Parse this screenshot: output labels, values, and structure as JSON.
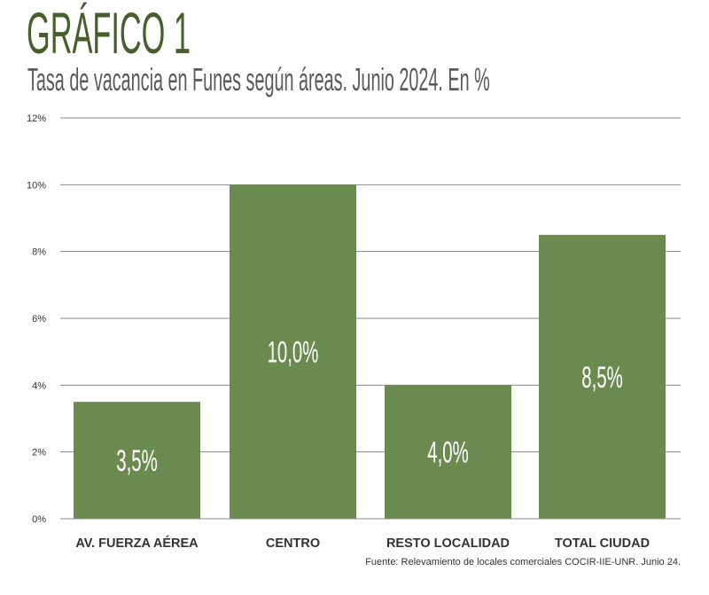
{
  "title": "GRÁFICO 1",
  "subtitle": "Tasa de vacancia en Funes según áreas. Junio 2024. En %",
  "source": "Fuente: Relevamiento de locales comerciales COCIR-IIE-UNR. Junio 24.",
  "chart_data": {
    "type": "bar",
    "categories": [
      "AV. FUERZA AÉREA",
      "CENTRO",
      "RESTO LOCALIDAD",
      "TOTAL CIUDAD"
    ],
    "values": [
      3.5,
      10.0,
      4.0,
      8.5
    ],
    "data_labels": [
      "3,5%",
      "10,0%",
      "4,0%",
      "8,5%"
    ],
    "yticks": [
      0,
      2,
      4,
      6,
      8,
      10,
      12
    ],
    "ytick_labels": [
      "0%",
      "2%",
      "4%",
      "6%",
      "8%",
      "10%",
      "12%"
    ],
    "ylim": [
      0,
      12
    ],
    "grid": true,
    "xlabel": "",
    "ylabel": "",
    "bar_color": "#6b8a4f"
  }
}
